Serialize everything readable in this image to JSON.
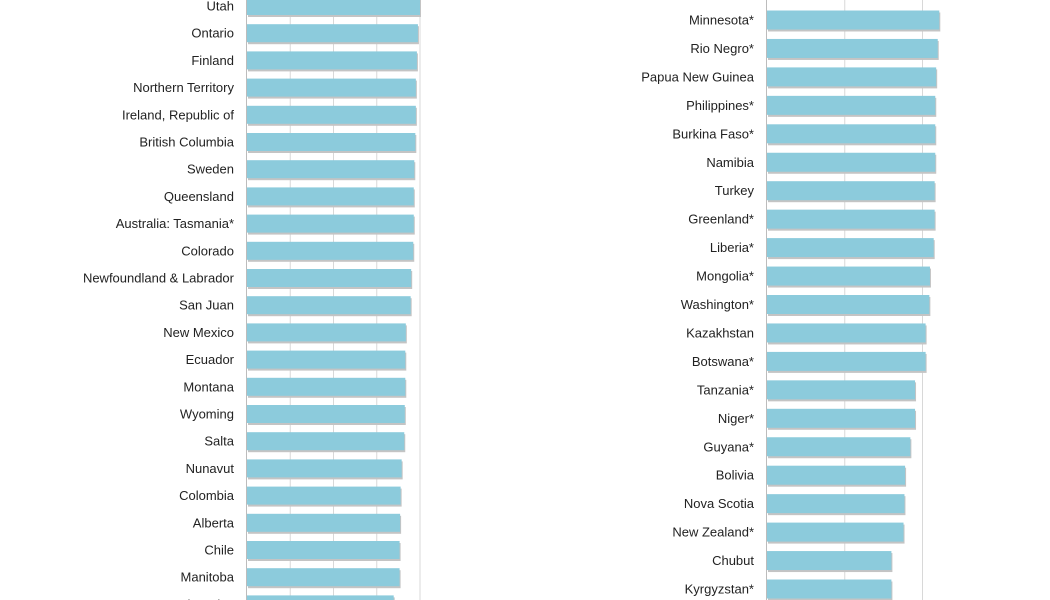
{
  "chart_data": [
    {
      "type": "bar",
      "orientation": "horizontal",
      "title": "",
      "xlabel": "",
      "ylabel": "",
      "xlim": [
        0,
        100
      ],
      "grid": true,
      "legend": "none",
      "bar_color": "#8ccbdc",
      "grid_color": "#d8d8d8",
      "categories": [
        "Utah",
        "Ontario",
        "Finland",
        "Northern Territory",
        "Ireland, Republic of",
        "British Columbia",
        "Sweden",
        "Queensland",
        "Australia: Tasmania*",
        "Colorado",
        "Newfoundland & Labrador",
        "San Juan",
        "New Mexico",
        "Ecuador",
        "Montana",
        "Wyoming",
        "Salta",
        "Nunavut",
        "Colombia",
        "Alberta",
        "Chile",
        "Manitoba",
        "New South Wales"
      ],
      "values": [
        100,
        98.8,
        98.2,
        97.6,
        97.6,
        97.3,
        96.7,
        96.4,
        96.4,
        96.1,
        94.9,
        94.6,
        91.8,
        91.5,
        91.5,
        91.2,
        90.9,
        89.4,
        88.8,
        88.5,
        88.2,
        88.2,
        84.8
      ]
    },
    {
      "type": "bar",
      "orientation": "horizontal",
      "title": "",
      "xlabel": "",
      "ylabel": "",
      "xlim": [
        0,
        100
      ],
      "grid": true,
      "legend": "none",
      "bar_color": "#8ccbdc",
      "grid_color": "#d8d8d8",
      "categories": [
        "Minnesota*",
        "Rio Negro*",
        "Papua New Guinea",
        "Philippines*",
        "Burkina Faso*",
        "Namibia",
        "Turkey",
        "Greenland*",
        "Liberia*",
        "Mongolia*",
        "Washington*",
        "Kazakhstan",
        "Botswana*",
        "Tanzania*",
        "Niger*",
        "Guyana*",
        "Bolivia",
        "Nova Scotia",
        "New Zealand*",
        "Chubut",
        "Kyrgyzstan*"
      ],
      "values": [
        55.4,
        54.9,
        54.4,
        54.1,
        54.1,
        54.1,
        53.9,
        53.9,
        53.6,
        52.4,
        52.2,
        51.0,
        51.0,
        47.6,
        47.6,
        46.1,
        44.4,
        44.2,
        43.9,
        40.0,
        40.0
      ]
    }
  ]
}
